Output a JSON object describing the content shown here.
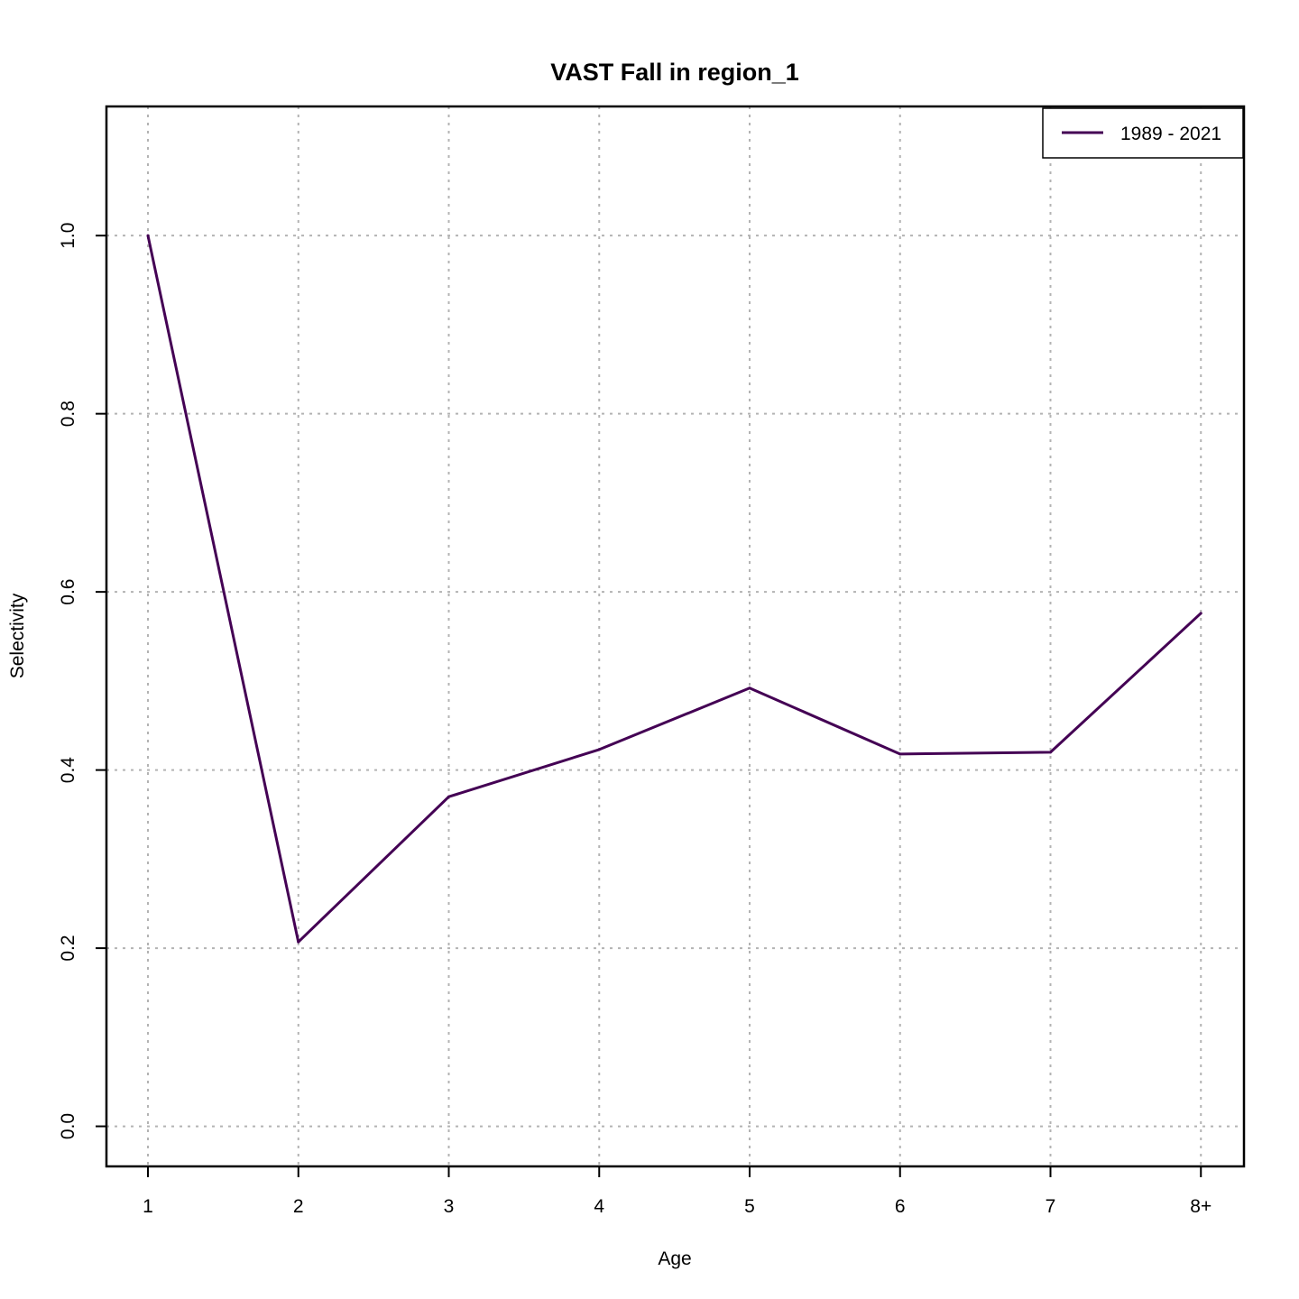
{
  "chart_data": {
    "type": "line",
    "title": "VAST Fall in region_1",
    "xlabel": "Age",
    "ylabel": "Selectivity",
    "categories": [
      "1",
      "2",
      "3",
      "4",
      "5",
      "6",
      "7",
      "8+"
    ],
    "x_ticks": [
      "1",
      "2",
      "3",
      "4",
      "5",
      "6",
      "7",
      "8+"
    ],
    "y_ticks": [
      "0.0",
      "0.2",
      "0.4",
      "0.6",
      "0.8",
      "1.0"
    ],
    "ylim": [
      -0.045,
      1.145
    ],
    "grid": true,
    "legend_position": "top-right",
    "series": [
      {
        "name": "1989 - 2021",
        "color": "#440154",
        "values": [
          1.0,
          0.207,
          0.37,
          0.423,
          0.492,
          0.418,
          0.42,
          0.576
        ]
      }
    ]
  }
}
